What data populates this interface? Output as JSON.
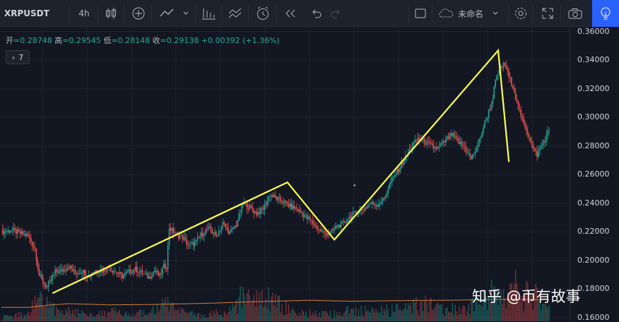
{
  "toolbar": {
    "symbol": "XRPUSDT",
    "interval": "4h",
    "layout_name": "未命名",
    "icons": [
      "candles-icon",
      "add-indicator-icon",
      "line-tool-icon",
      "chevron-down-icon",
      "bar-chart-icon",
      "compare-icon",
      "alert-clock-icon",
      "replay-icon",
      "undo-icon",
      "redo-icon",
      "fullscreen-box-icon",
      "cloud-icon",
      "settings-icon",
      "expand-icon",
      "camera-icon",
      "lightbulb-icon"
    ]
  },
  "legend": {
    "open_label": "开",
    "open": "=0.28748",
    "high_label": "高",
    "high": "=0.29545",
    "low_label": "低",
    "low": "=0.28148",
    "close_label": "收",
    "close": "=0.29138",
    "change": "+0.00392",
    "change_pct": "(+1.36%)",
    "indicators_toggle": "7"
  },
  "watermark": "知乎 @币有故事",
  "colors": {
    "up": "#26a69a",
    "down": "#ef5350",
    "drawing": "#ffff50",
    "background": "#131722"
  },
  "chart_data": {
    "type": "candlestick",
    "symbol": "XRPUSDT",
    "interval": "4h",
    "y_tick_labels": [
      "0.36000",
      "0.34000",
      "0.32000",
      "0.30000",
      "0.28000",
      "0.26000",
      "0.24000",
      "0.22000",
      "0.20000",
      "0.18000",
      "0.16000"
    ],
    "ylim": [
      0.1575,
      0.3632
    ],
    "close_path": [
      [
        0,
        0.22
      ],
      [
        8,
        0.221
      ],
      [
        14,
        0.219
      ],
      [
        20,
        0.217
      ],
      [
        25,
        0.208
      ],
      [
        28,
        0.19
      ],
      [
        31,
        0.185
      ],
      [
        34,
        0.181
      ],
      [
        37,
        0.186
      ],
      [
        40,
        0.192
      ],
      [
        45,
        0.193
      ],
      [
        50,
        0.196
      ],
      [
        55,
        0.191
      ],
      [
        60,
        0.193
      ],
      [
        65,
        0.189
      ],
      [
        70,
        0.193
      ],
      [
        75,
        0.193
      ],
      [
        80,
        0.195
      ],
      [
        85,
        0.192
      ],
      [
        90,
        0.189
      ],
      [
        95,
        0.192
      ],
      [
        100,
        0.194
      ],
      [
        105,
        0.191
      ],
      [
        110,
        0.188
      ],
      [
        114,
        0.193
      ],
      [
        118,
        0.189
      ],
      [
        121,
        0.196
      ],
      [
        123,
        0.196
      ],
      [
        125,
        0.223
      ],
      [
        127,
        0.221
      ],
      [
        130,
        0.218
      ],
      [
        135,
        0.216
      ],
      [
        140,
        0.21
      ],
      [
        145,
        0.213
      ],
      [
        150,
        0.219
      ],
      [
        155,
        0.222
      ],
      [
        160,
        0.217
      ],
      [
        165,
        0.226
      ],
      [
        170,
        0.219
      ],
      [
        175,
        0.225
      ],
      [
        180,
        0.24
      ],
      [
        185,
        0.237
      ],
      [
        190,
        0.233
      ],
      [
        195,
        0.236
      ],
      [
        200,
        0.246
      ],
      [
        205,
        0.243
      ],
      [
        210,
        0.241
      ],
      [
        215,
        0.238
      ],
      [
        220,
        0.236
      ],
      [
        225,
        0.232
      ],
      [
        230,
        0.228
      ],
      [
        235,
        0.223
      ],
      [
        240,
        0.219
      ],
      [
        245,
        0.219
      ],
      [
        250,
        0.224
      ],
      [
        255,
        0.226
      ],
      [
        260,
        0.231
      ],
      [
        265,
        0.234
      ],
      [
        270,
        0.236
      ],
      [
        275,
        0.24
      ],
      [
        280,
        0.239
      ],
      [
        285,
        0.243
      ],
      [
        290,
        0.255
      ],
      [
        295,
        0.262
      ],
      [
        300,
        0.27
      ],
      [
        305,
        0.279
      ],
      [
        310,
        0.285
      ],
      [
        315,
        0.283
      ],
      [
        320,
        0.28
      ],
      [
        325,
        0.278
      ],
      [
        330,
        0.283
      ],
      [
        335,
        0.288
      ],
      [
        340,
        0.283
      ],
      [
        345,
        0.279
      ],
      [
        350,
        0.271
      ],
      [
        355,
        0.281
      ],
      [
        360,
        0.296
      ],
      [
        365,
        0.309
      ],
      [
        368,
        0.325
      ],
      [
        372,
        0.335
      ],
      [
        375,
        0.337
      ],
      [
        378,
        0.328
      ],
      [
        381,
        0.322
      ],
      [
        384,
        0.31
      ],
      [
        387,
        0.3
      ],
      [
        390,
        0.294
      ],
      [
        393,
        0.287
      ],
      [
        396,
        0.278
      ],
      [
        399,
        0.274
      ],
      [
        402,
        0.28
      ],
      [
        405,
        0.285
      ],
      [
        408,
        0.291
      ]
    ],
    "ma_path": [
      [
        0,
        0.1672
      ],
      [
        20,
        0.1672
      ],
      [
        35,
        0.1688
      ],
      [
        50,
        0.1698
      ],
      [
        80,
        0.169
      ],
      [
        110,
        0.1692
      ],
      [
        150,
        0.17
      ],
      [
        190,
        0.1712
      ],
      [
        230,
        0.1722
      ],
      [
        260,
        0.1715
      ],
      [
        300,
        0.172
      ],
      [
        340,
        0.1723
      ],
      [
        370,
        0.1728
      ],
      [
        400,
        0.1727
      ]
    ],
    "volume_path": [
      [
        0,
        2
      ],
      [
        20,
        4
      ],
      [
        28,
        15
      ],
      [
        31,
        10
      ],
      [
        40,
        7
      ],
      [
        60,
        4
      ],
      [
        80,
        5
      ],
      [
        110,
        4
      ],
      [
        124,
        10
      ],
      [
        130,
        5
      ],
      [
        150,
        3
      ],
      [
        165,
        5
      ],
      [
        175,
        8
      ],
      [
        180,
        16
      ],
      [
        185,
        10
      ],
      [
        200,
        12
      ],
      [
        215,
        6
      ],
      [
        230,
        4
      ],
      [
        245,
        4
      ],
      [
        260,
        6
      ],
      [
        280,
        5
      ],
      [
        300,
        7
      ],
      [
        315,
        9
      ],
      [
        330,
        6
      ],
      [
        345,
        7
      ],
      [
        360,
        12
      ],
      [
        368,
        18
      ],
      [
        375,
        15
      ],
      [
        382,
        24
      ],
      [
        386,
        12
      ],
      [
        393,
        15
      ],
      [
        400,
        13
      ],
      [
        408,
        7
      ]
    ],
    "drawing_polyline": [
      [
        38,
        0.1771
      ],
      [
        213,
        0.2546
      ],
      [
        248,
        0.2145
      ],
      [
        370,
        0.3467
      ],
      [
        378,
        0.2688
      ]
    ]
  }
}
